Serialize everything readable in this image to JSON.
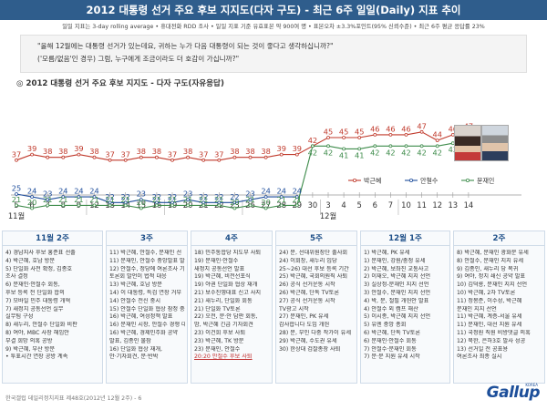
{
  "header": {
    "title": "2012 대통령 선거 주요 후보 지지도(다자 구도) - 최근 6주 일일(Daily) 지표 추이",
    "method": "일일 지표는 3-day rolling average • 휴대전화 RDD 조사 • 일일 지표 기준 유효표본 약 900여 명 • 표본오차 ±3.3%포인트(95% 신뢰수준) • 최근 6주 평균 응답률 23%"
  },
  "question": {
    "line1": "\"올해 12월에는 대통령 선거가 있는데요, 귀하는 누가 다음 대통령이 되는 것이 좋다고 생각하십니까?\"",
    "line2": "('모름/없음'인 경우) 그럼, 누구에게 조금이라도 더 호감이 가십니까?\""
  },
  "chart_title": "◎ 2012 대통령 선거 주요 후보 지지도 - 다자 구도(자유응답)",
  "chart_data": {
    "type": "line",
    "title": "2012 대통령 선거 주요 후보 지지도 - 다자 구도(자유응답)",
    "x": [
      "5",
      "6",
      "7",
      "8",
      "9",
      "12",
      "13",
      "14",
      "15",
      "16",
      "19",
      "20",
      "21",
      "22",
      "23",
      "26",
      "27",
      "28",
      "29",
      "30",
      "3",
      "4",
      "5",
      "6",
      "7",
      "10",
      "11",
      "12",
      "13",
      "14"
    ],
    "month_labels": [
      {
        "label": "11월",
        "index": 0
      },
      {
        "label": "12월",
        "index": 20
      }
    ],
    "series": [
      {
        "name": "박근혜",
        "color": "#c0392b",
        "values": [
          37,
          39,
          38,
          38,
          39,
          38,
          37,
          37,
          38,
          38,
          37,
          38,
          37,
          37,
          38,
          38,
          38,
          39,
          39,
          42,
          45,
          45,
          45,
          46,
          46,
          46,
          47,
          44,
          46,
          47
        ]
      },
      {
        "name": "안철수",
        "color": "#1f4e9c",
        "values": [
          25,
          24,
          23,
          24,
          24,
          24,
          22,
          22,
          23,
          22,
          22,
          23,
          22,
          22,
          22,
          23,
          24,
          24,
          24,
          null,
          null,
          null,
          null,
          null,
          null,
          null,
          null,
          null,
          null,
          null
        ]
      },
      {
        "name": "문재인",
        "color": "#3d8b4a",
        "values": [
          21,
          20,
          21,
          21,
          21,
          21,
          21,
          21,
          20,
          21,
          21,
          21,
          21,
          21,
          20,
          21,
          20,
          21,
          21,
          42,
          42,
          41,
          41,
          42,
          42,
          42,
          42,
          42,
          43,
          42
        ]
      }
    ],
    "legend": "right",
    "ylim": [
      15,
      55
    ]
  },
  "weeks": [
    {
      "label": "11월 2주",
      "items": [
        "4) 경남지사 후보 홍준표 선출",
        "4) 박근혜, 호남 방문",
        "5) 단일화 사전 확정, 김종호",
        "   조사 결정",
        "6) 문재인·안철수 회동,",
        "   후보 등록 전 단일화 합의",
        "7) 모바일 민주 대통령 개혁",
        "7) 새정치 공동선언 실무",
        "   실무팀 구성",
        "8) 새누리, 안철수 단일화 비판",
        "8) 여야, MBC 사장 해임안",
        "   부결 희망 의혹 공방",
        "9) 박근혜, 부산 방문",
        "   • 투표시간 연장 공방 계속"
      ]
    },
    {
      "label": "3주",
      "items": [
        "11) 박근혜, 안철수, 문재인 선",
        "11) 문재인, 안철수 중앙발표 발",
        "12) 안철수, 정당에 여론조사 기관",
        "   토론회 발언이 법적 대응",
        "13) 박근혜, 호남 방문",
        "14) 이 대통령, 특검 연장 거부",
        "14) 안철수 전신 중시",
        "15) 안철수 단일화 협상 잠정 중단",
        "16) 박근혜, 여성정책 발표",
        "16) 문재인 시장, 안철수 경쟁 대통",
        "16) 박근혜, 경제민주화 공약",
        "   발표, 김종인 불참",
        "16) 단일화 협상 재개,",
        "   안·기자회견, 문·반박"
      ]
    },
    {
      "label": "4주",
      "items": [
        "18) 민주통합당 지도부 사퇴",
        "19) 문재인·안철수",
        "   새정치 공동선언 발표",
        "19) 박근혜, 비전선포식",
        "19) 야권 단일화 협상 재개",
        "21) 보수진영대표 신고 사지",
        "21) 새누리, 단일화 회동",
        "21) 단일화 TV토론",
        "22) 오전, 문·안 담판 회동,",
        "   밤, 박근혜 긴급 기자회견",
        "23) 이건희 후보 사퇴",
        "23) 박근혜, TK 방문",
        "23) 문재인, 안철수",
        "20:20 안철수 후보 사퇴"
      ]
    },
    {
      "label": "5주",
      "items": [
        "24) 문, 선대위원장단 출사회",
        "24) 이회창, 새누리 입당",
        "25~26) 대선 후보 등록 기간",
        "25) 박근혜, 국회의원직 사퇴",
        "26) 공식 선거운동 시작",
        "26) 박근혜, 단독 TV토론",
        "27) 공식 선거운동 시작",
        "   TV광고 시작",
        "27) 문재인, PK 유세",
        "   감사합니다 도입 개헌",
        "28) 문, 부인 다중 작가이 유세",
        "29) 박근혜, 수도권 유세",
        "30) 한상대 검찰총장 사퇴"
      ]
    },
    {
      "label": "12월 1주",
      "items": [
        "1) 박근혜, PK 유세",
        "1) 문재인, 강원/충청 유세",
        "2) 박근혜, 보좌진 교통사고",
        "2) 이재오, 박근혜 지지 선언",
        "3) 실상정-문재인 지지 선언",
        "3) 안철수, 문재인 지지 선언",
        "4) 박, 문, 절필 개헌안 발표",
        "4) 안철수 외 캠프 해산",
        "5) 이시종, 박근혜 지지 선언",
        "5) 유엔 중앙 총회",
        "6) 박근혜, 단독 TV토론",
        "6) 문재인·안철수 회동",
        "7) 안철수·문재인 회동",
        "7) 문·문 지원 유세 시작"
      ]
    },
    {
      "label": "2주",
      "items": [
        "8) 박근혜, 문재인 광화문 유세",
        "8) 안철수, 문재인 지지 유세",
        "9) 김종인, 새누리 당 복귀",
        "9) 여야, 정치 쇄신 공약 발표",
        "10) 김덕룡, 문재인 지지 선언",
        "10) 박근혜, 2차 TV토론",
        "11) 정몽준, 이수성, 박근혜",
        "   문재인 지지 선언",
        "11) 박근혜, 계층-서울 유세",
        "11) 문재인, 대선 지원 유세",
        "11) 국정원 직원 비방댓글 의혹",
        "12) 북한, 은하3호 발사 성공",
        "13) 선거일 전 공표용",
        "   여론조사 최종 실시"
      ]
    }
  ],
  "footer": "한국갤럽 데일리정치지표 제48호(2012년 12월 2주) - 6",
  "logo": {
    "text": "Gallup",
    "tag": "KOREA"
  }
}
